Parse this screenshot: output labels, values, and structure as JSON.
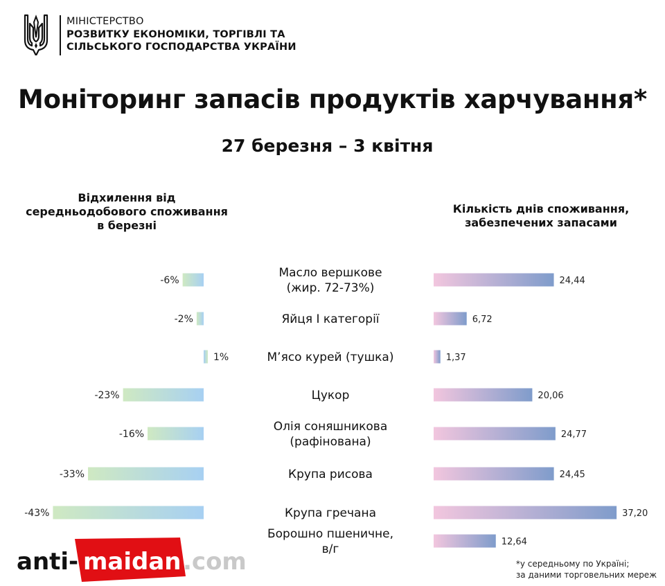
{
  "header": {
    "ministry_lines": [
      "МІНІСТЕРСТВО",
      "РОЗВИТКУ ЕКОНОМІКИ, ТОРГІВЛІ ТА",
      "СІЛЬСЬКОГО ГОСПОДАРСТВА УКРАЇНИ"
    ]
  },
  "title": "Моніторинг запасів продуктів харчування*",
  "subtitle": "27 березня – 3 квітня",
  "left_header": [
    "Відхилення від",
    "середньодобового споживання",
    "в березні"
  ],
  "right_header": [
    "Кількість днів споживання,",
    "забезпечених запасами"
  ],
  "chart_data": {
    "type": "bar",
    "categories": [
      [
        "Масло вершкове",
        "(жир. 72-73%)"
      ],
      [
        "Яйця І категорії"
      ],
      [
        "М’ясо курей (тушка)"
      ],
      [
        "Цукор"
      ],
      [
        "Олія соняшникова",
        "(рафінована)"
      ],
      [
        "Крупа рисова"
      ],
      [
        "Крупа гречана"
      ],
      [
        "Борошно пшеничне,",
        "в/г"
      ]
    ],
    "series": [
      {
        "values": [
          -6,
          -2,
          1,
          -23,
          -16,
          -33,
          -43,
          null
        ],
        "labels": [
          "-6%",
          "-2%",
          "1%",
          "-23%",
          "-16%",
          "-33%",
          "-43%",
          ""
        ],
        "colors": [
          "#cfe9c2",
          "#a7d0f2"
        ]
      },
      {
        "values": [
          24.44,
          6.72,
          1.37,
          20.06,
          24.77,
          24.45,
          37.2,
          12.64
        ],
        "labels": [
          "24,44",
          "6,72",
          "1,37",
          "20,06",
          "24,77",
          "24,45",
          "37,20",
          "12,64"
        ],
        "colors": [
          "#f2c6de",
          "#7f9ccb"
        ]
      }
    ]
  },
  "footnote": [
    "*у середньому по Україні;",
    "за даними торговельних мереж"
  ],
  "watermark": {
    "text": "anti-maidan.com",
    "part1": "anti-",
    "part2": "maidan",
    "part3": ".com",
    "colors": {
      "red": "#e10f14",
      "dark": "#111111",
      "grey": "#c9c9c9"
    }
  }
}
